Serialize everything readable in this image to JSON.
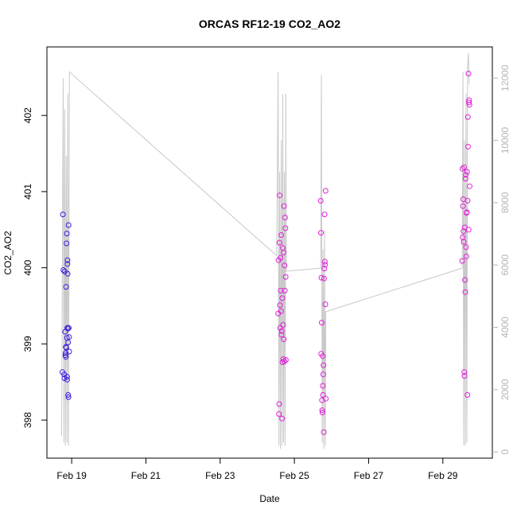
{
  "chart_data": {
    "type": "scatter",
    "title": "ORCAS RF12-19 CO2_AO2",
    "xlabel": "Date",
    "ylabel": "CO2_AO2",
    "x_ticks": [
      "Feb 19",
      "Feb 21",
      "Feb 23",
      "Feb 25",
      "Feb 27",
      "Feb 29"
    ],
    "y_ticks": [
      "398",
      "399",
      "400",
      "401",
      "402"
    ],
    "y2_ticks": [
      "0",
      "2000",
      "4000",
      "6000",
      "8000",
      "10000",
      "12000"
    ],
    "xlim": [
      "2016-02-18 08:00",
      "2016-03-01 08:00"
    ],
    "ylim": [
      397.5,
      402.9
    ],
    "y2lim": [
      -200,
      13000
    ],
    "grid": false,
    "colors": {
      "early_points": "#3b1fe0",
      "late_points": "#e020d8",
      "altitude_trace": "#c8c8c8"
    },
    "series": [
      {
        "values": [
          [
            "2016-02-18 18:00",
            398.63
          ],
          [
            "2016-02-18 18:20",
            400.7
          ],
          [
            "2016-02-18 18:40",
            399.97
          ],
          [
            "2016-02-18 19:10",
            398.6
          ],
          [
            "2016-02-18 19:20",
            398.55
          ],
          [
            "2016-02-18 19:30",
            399.95
          ],
          [
            "2016-02-18 19:45",
            399.16
          ],
          [
            "2016-02-18 19:55",
            398.85
          ],
          [
            "2016-02-18 20:05",
            398.88
          ],
          [
            "2016-02-18 20:15",
            398.83
          ],
          [
            "2016-02-18 20:20",
            399.75
          ],
          [
            "2016-02-18 20:30",
            398.95
          ],
          [
            "2016-02-18 20:40",
            400.32
          ],
          [
            "2016-02-18 20:50",
            400.45
          ],
          [
            "2016-02-18 20:55",
            399.08
          ],
          [
            "2016-02-18 21:00",
            398.57
          ],
          [
            "2016-02-18 21:05",
            398.53
          ],
          [
            "2016-02-18 21:10",
            399.21
          ],
          [
            "2016-02-18 21:15",
            400.05
          ],
          [
            "2016-02-18 21:20",
            400.1
          ],
          [
            "2016-02-18 21:25",
            399.92
          ],
          [
            "2016-02-18 21:30",
            399.2
          ],
          [
            "2016-02-18 21:40",
            399.02
          ],
          [
            "2016-02-18 21:45",
            398.33
          ],
          [
            "2016-02-18 21:55",
            398.3
          ],
          [
            "2016-02-18 22:00",
            400.56
          ],
          [
            "2016-02-18 22:10",
            399.21
          ],
          [
            "2016-02-18 22:20",
            399.09
          ],
          [
            "2016-02-18 22:25",
            398.9
          ],
          [
            "2016-02-18 20:10",
            398.96
          ]
        ]
      },
      {
        "values": [
          [
            "2016-02-24 13:30",
            399.4
          ],
          [
            "2016-02-24 13:45",
            400.1
          ],
          [
            "2016-02-24 14:00",
            398.08
          ],
          [
            "2016-02-24 14:10",
            398.21
          ],
          [
            "2016-02-24 14:20",
            400.33
          ],
          [
            "2016-02-24 14:30",
            400.95
          ],
          [
            "2016-02-24 14:40",
            399.51
          ],
          [
            "2016-02-24 14:50",
            399.21
          ],
          [
            "2016-02-24 15:00",
            400.13
          ],
          [
            "2016-02-24 15:10",
            399.7
          ],
          [
            "2016-02-24 15:20",
            399.43
          ],
          [
            "2016-02-24 15:30",
            400.43
          ],
          [
            "2016-02-24 15:40",
            399.12
          ],
          [
            "2016-02-24 15:50",
            399.17
          ],
          [
            "2016-02-24 16:00",
            398.02
          ],
          [
            "2016-02-24 16:10",
            399.6
          ],
          [
            "2016-02-24 16:20",
            398.76
          ],
          [
            "2016-02-24 16:30",
            400.26
          ],
          [
            "2016-02-24 16:40",
            399.25
          ],
          [
            "2016-02-24 16:50",
            398.8
          ],
          [
            "2016-02-24 17:00",
            400.2
          ],
          [
            "2016-02-24 17:10",
            399.06
          ],
          [
            "2016-02-24 17:20",
            400.81
          ],
          [
            "2016-02-24 17:30",
            398.77
          ],
          [
            "2016-02-24 17:40",
            400.03
          ],
          [
            "2016-02-24 17:50",
            399.7
          ],
          [
            "2016-02-24 18:00",
            400.66
          ],
          [
            "2016-02-24 18:10",
            400.52
          ],
          [
            "2016-02-24 18:20",
            399.88
          ],
          [
            "2016-02-24 18:30",
            398.79
          ],
          [
            "2016-02-25 17:00",
            400.88
          ],
          [
            "2016-02-25 17:10",
            400.46
          ],
          [
            "2016-02-25 17:20",
            398.87
          ],
          [
            "2016-02-25 17:30",
            399.87
          ],
          [
            "2016-02-25 17:40",
            399.28
          ],
          [
            "2016-02-25 17:50",
            398.26
          ],
          [
            "2016-02-25 18:00",
            398.13
          ],
          [
            "2016-02-25 18:10",
            398.1
          ],
          [
            "2016-02-25 18:20",
            398.84
          ],
          [
            "2016-02-25 18:25",
            398.45
          ],
          [
            "2016-02-25 18:30",
            398.33
          ],
          [
            "2016-02-25 18:40",
            398.6
          ],
          [
            "2016-02-25 18:50",
            398.72
          ],
          [
            "2016-02-25 19:00",
            397.84
          ],
          [
            "2016-02-25 19:10",
            399.86
          ],
          [
            "2016-02-25 19:20",
            399.99
          ],
          [
            "2016-02-25 19:30",
            400.7
          ],
          [
            "2016-02-25 19:40",
            400.08
          ],
          [
            "2016-02-25 19:50",
            400.04
          ],
          [
            "2016-02-25 20:00",
            399.52
          ],
          [
            "2016-02-25 20:10",
            401.01
          ],
          [
            "2016-02-25 20:20",
            398.28
          ],
          [
            "2016-02-29 12:30",
            400.09
          ],
          [
            "2016-02-29 12:40",
            401.3
          ],
          [
            "2016-02-29 12:50",
            400.4
          ],
          [
            "2016-02-29 13:00",
            400.81
          ],
          [
            "2016-02-29 13:10",
            400.9
          ],
          [
            "2016-02-29 13:20",
            400.48
          ],
          [
            "2016-02-29 13:30",
            400.34
          ],
          [
            "2016-02-29 13:40",
            401.32
          ],
          [
            "2016-02-29 13:50",
            398.63
          ],
          [
            "2016-02-29 14:00",
            398.58
          ],
          [
            "2016-02-29 14:10",
            400.53
          ],
          [
            "2016-02-29 14:20",
            399.84
          ],
          [
            "2016-02-29 14:30",
            399.68
          ],
          [
            "2016-02-29 14:40",
            401.17
          ],
          [
            "2016-02-29 14:50",
            401.22
          ],
          [
            "2016-02-29 15:00",
            400.27
          ],
          [
            "2016-02-29 15:10",
            400.15
          ],
          [
            "2016-02-29 15:20",
            400.72
          ],
          [
            "2016-02-29 15:30",
            400.73
          ],
          [
            "2016-02-29 15:40",
            401.26
          ],
          [
            "2016-02-29 15:50",
            398.33
          ],
          [
            "2016-02-29 16:00",
            400.88
          ],
          [
            "2016-02-29 16:10",
            401.98
          ],
          [
            "2016-02-29 16:20",
            401.59
          ],
          [
            "2016-02-29 16:30",
            402.55
          ],
          [
            "2016-02-29 16:40",
            400.5
          ],
          [
            "2016-02-29 16:50",
            402.17
          ],
          [
            "2016-02-29 17:00",
            402.2
          ],
          [
            "2016-02-29 17:10",
            402.14
          ],
          [
            "2016-02-29 17:20",
            401.07
          ]
        ]
      }
    ],
    "altitude_trace": {
      "values": [
        [
          "2016-02-18 17:30",
          500
        ],
        [
          "2016-02-18 18:30",
          12000
        ],
        [
          "2016-02-18 19:00",
          300
        ],
        [
          "2016-02-18 19:30",
          11000
        ],
        [
          "2016-02-18 20:00",
          200
        ],
        [
          "2016-02-18 20:30",
          9500
        ],
        [
          "2016-02-18 21:00",
          300
        ],
        [
          "2016-02-18 21:30",
          11500
        ],
        [
          "2016-02-18 22:00",
          200
        ],
        [
          "2016-02-18 22:30",
          12200
        ],
        [
          "2016-02-24 12:30",
          6300
        ],
        [
          "2016-02-24 13:30",
          12200
        ],
        [
          "2016-02-24 14:00",
          200
        ],
        [
          "2016-02-24 14:30",
          9000
        ],
        [
          "2016-02-24 15:00",
          100
        ],
        [
          "2016-02-24 15:30",
          10000
        ],
        [
          "2016-02-24 16:00",
          200
        ],
        [
          "2016-02-24 16:30",
          11500
        ],
        [
          "2016-02-24 17:00",
          300
        ],
        [
          "2016-02-24 17:30",
          9000
        ],
        [
          "2016-02-24 18:00",
          200
        ],
        [
          "2016-02-24 18:30",
          11500
        ],
        [
          "2016-02-24 18:45",
          5800
        ],
        [
          "2016-02-25 17:00",
          5900
        ],
        [
          "2016-02-25 17:30",
          12100
        ],
        [
          "2016-02-25 18:00",
          300
        ],
        [
          "2016-02-25 18:30",
          6500
        ],
        [
          "2016-02-25 19:00",
          100
        ],
        [
          "2016-02-25 19:30",
          7100
        ],
        [
          "2016-02-25 20:00",
          200
        ],
        [
          "2016-02-25 20:20",
          4500
        ],
        [
          "2016-02-29 12:30",
          5900
        ],
        [
          "2016-02-29 13:00",
          12200
        ],
        [
          "2016-02-29 13:30",
          200
        ],
        [
          "2016-02-29 14:00",
          10000
        ],
        [
          "2016-02-29 14:30",
          200
        ],
        [
          "2016-02-29 15:00",
          11500
        ],
        [
          "2016-02-29 15:30",
          300
        ],
        [
          "2016-02-29 16:00",
          12400
        ],
        [
          "2016-02-29 16:30",
          12800
        ],
        [
          "2016-02-29 17:00",
          11800
        ]
      ]
    }
  }
}
